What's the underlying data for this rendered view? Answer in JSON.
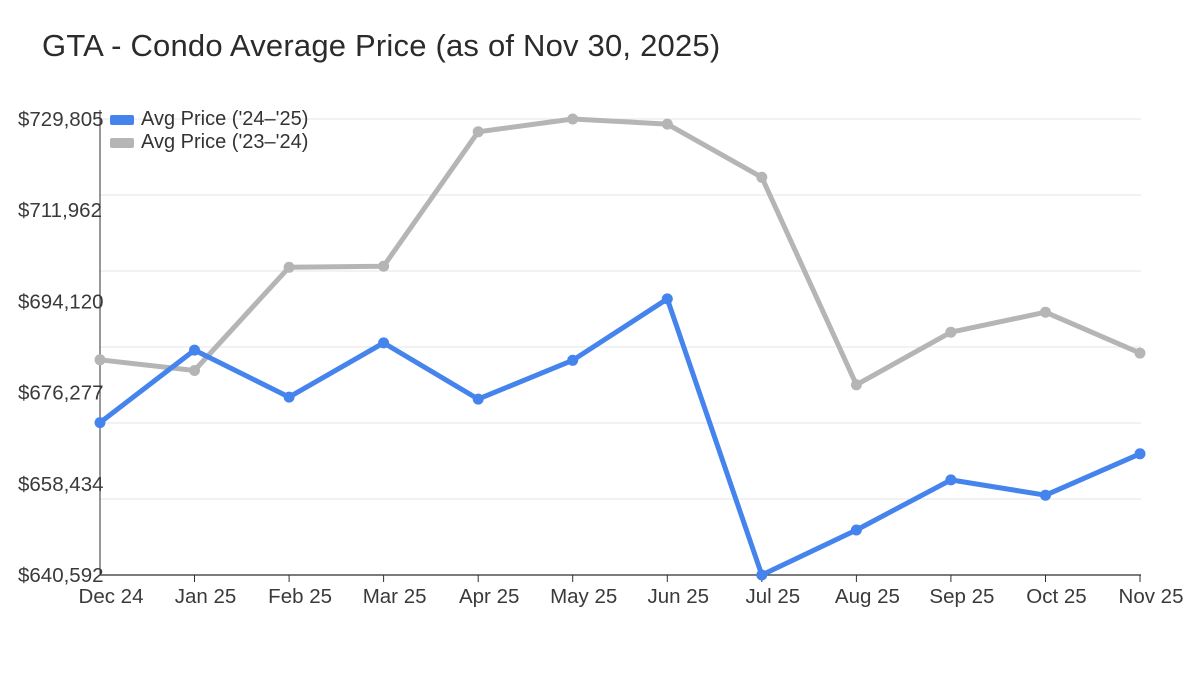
{
  "title": "GTA - Condo Average Price (as of Nov 30, 2025)",
  "chart_data": {
    "type": "line",
    "title": "GTA - Condo Average Price (as of Nov 30, 2025)",
    "categories": [
      "Dec 24",
      "Jan 25",
      "Feb 25",
      "Mar 25",
      "Apr 25",
      "May 25",
      "Jun 25",
      "Jul 25",
      "Aug 25",
      "Sep 25",
      "Oct 25",
      "Nov 25"
    ],
    "series": [
      {
        "name": "Avg Price ('24–'25)",
        "color": "#4584ec",
        "values": [
          670400,
          684600,
          675400,
          686000,
          675000,
          682600,
          694600,
          640592,
          649400,
          659200,
          656200,
          664300
        ]
      },
      {
        "name": "Avg Price ('23–'24)",
        "color": "#b5b5b5",
        "values": [
          682700,
          680600,
          700800,
          701000,
          727300,
          729805,
          728800,
          718400,
          677800,
          688100,
          692000,
          684000
        ]
      }
    ],
    "y_axis": {
      "min": 640592,
      "max": 729805,
      "tick_labels": [
        "$640,592",
        "$658,434",
        "$676,277",
        "$694,120",
        "$711,962",
        "$729,805"
      ]
    },
    "x_axis": {
      "tick_labels": [
        "Dec 24",
        "Jan 25",
        "Feb 25",
        "Mar 25",
        "Apr 25",
        "May 25",
        "Jun 25",
        "Jul 25",
        "Aug 25",
        "Sep 25",
        "Oct 25",
        "Nov 25"
      ]
    },
    "legend_position": "top-left-inside",
    "grid": true,
    "gridline_count": 6,
    "marker": "circle"
  },
  "colors": {
    "background": "#ffffff",
    "gridline": "#e5e5e5",
    "axis": "#2f2f2f",
    "tick_text": "#3a3a3a",
    "title_text": "#2b2b2b",
    "legend_text": "#333333"
  }
}
